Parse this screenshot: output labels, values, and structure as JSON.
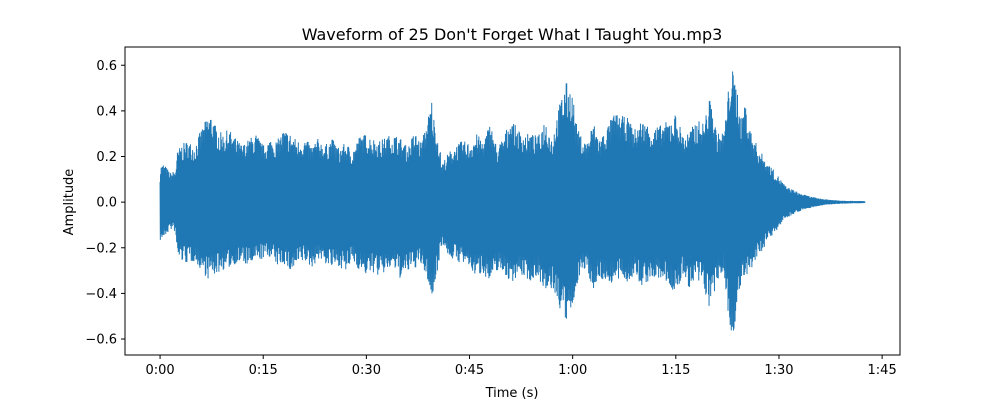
{
  "chart_data": {
    "type": "area",
    "title": "Waveform of 25 Don't Forget What I Taught You.mp3",
    "xlabel": "Time (s)",
    "ylabel": "Amplitude",
    "xlim": [
      -5.1,
      107.6
    ],
    "ylim": [
      -0.67,
      0.68
    ],
    "x_ticks": [
      {
        "value": 0,
        "label": "0:00"
      },
      {
        "value": 15,
        "label": "0:15"
      },
      {
        "value": 30,
        "label": "0:30"
      },
      {
        "value": 45,
        "label": "0:45"
      },
      {
        "value": 60,
        "label": "1:00"
      },
      {
        "value": 75,
        "label": "1:15"
      },
      {
        "value": 90,
        "label": "1:30"
      },
      {
        "value": 105,
        "label": "1:45"
      }
    ],
    "y_ticks": [
      {
        "value": 0.6,
        "label": "0.6"
      },
      {
        "value": 0.4,
        "label": "0.4"
      },
      {
        "value": 0.2,
        "label": "0.2"
      },
      {
        "value": 0.0,
        "label": "0.0"
      },
      {
        "value": -0.2,
        "label": "−0.2"
      },
      {
        "value": -0.4,
        "label": "−0.4"
      },
      {
        "value": -0.6,
        "label": "−0.6"
      }
    ],
    "grid": false,
    "series_color": "#1f77b4",
    "series": [
      {
        "envelope": {
          "time": [
            0,
            0.5,
            1.5,
            2.2,
            2.5,
            3,
            4,
            5,
            6,
            7,
            7.5,
            8,
            9,
            10,
            11,
            12,
            13,
            14,
            15,
            16,
            17,
            18,
            19,
            20,
            21,
            22,
            23,
            24,
            25,
            26,
            27,
            28,
            29,
            30,
            31,
            32,
            33,
            34,
            35,
            36,
            37,
            38,
            39,
            39.5,
            40,
            40.5,
            41,
            42,
            43,
            44,
            45,
            46,
            47,
            48,
            49,
            50,
            51,
            52,
            53,
            54,
            55,
            56,
            57,
            58,
            59,
            60,
            60.5,
            61,
            62,
            63,
            64,
            65,
            66,
            67,
            68,
            69,
            70,
            71,
            72,
            73,
            74,
            75,
            76,
            77,
            78,
            79,
            80,
            81,
            82,
            82.5,
            83,
            84,
            84.5,
            85,
            86,
            87,
            88,
            89,
            90,
            91,
            92,
            93,
            94,
            95,
            96,
            97,
            98,
            99,
            100,
            101,
            102,
            102.5
          ],
          "max": [
            0.16,
            0.17,
            0.13,
            0.14,
            0.22,
            0.25,
            0.27,
            0.25,
            0.32,
            0.38,
            0.39,
            0.34,
            0.3,
            0.32,
            0.28,
            0.25,
            0.28,
            0.3,
            0.25,
            0.28,
            0.27,
            0.32,
            0.3,
            0.27,
            0.28,
            0.25,
            0.28,
            0.25,
            0.28,
            0.24,
            0.26,
            0.23,
            0.29,
            0.3,
            0.28,
            0.27,
            0.29,
            0.3,
            0.28,
            0.24,
            0.31,
            0.26,
            0.38,
            0.45,
            0.33,
            0.28,
            0.17,
            0.22,
            0.25,
            0.27,
            0.26,
            0.3,
            0.27,
            0.35,
            0.24,
            0.29,
            0.37,
            0.32,
            0.3,
            0.3,
            0.29,
            0.37,
            0.28,
            0.42,
            0.53,
            0.48,
            0.35,
            0.3,
            0.26,
            0.35,
            0.28,
            0.33,
            0.39,
            0.38,
            0.37,
            0.32,
            0.36,
            0.34,
            0.33,
            0.34,
            0.36,
            0.39,
            0.3,
            0.31,
            0.36,
            0.35,
            0.46,
            0.3,
            0.31,
            0.45,
            0.61,
            0.49,
            0.35,
            0.45,
            0.3,
            0.24,
            0.19,
            0.15,
            0.11,
            0.07,
            0.055,
            0.04,
            0.03,
            0.022,
            0.016,
            0.012,
            0.009,
            0.007,
            0.006,
            0.005,
            0.005,
            0.004
          ],
          "min": [
            -0.17,
            -0.16,
            -0.12,
            -0.13,
            -0.24,
            -0.26,
            -0.27,
            -0.26,
            -0.3,
            -0.34,
            -0.32,
            -0.32,
            -0.3,
            -0.29,
            -0.27,
            -0.27,
            -0.28,
            -0.26,
            -0.25,
            -0.24,
            -0.28,
            -0.27,
            -0.31,
            -0.28,
            -0.26,
            -0.29,
            -0.25,
            -0.27,
            -0.29,
            -0.28,
            -0.31,
            -0.26,
            -0.3,
            -0.32,
            -0.31,
            -0.33,
            -0.3,
            -0.29,
            -0.34,
            -0.31,
            -0.29,
            -0.28,
            -0.35,
            -0.44,
            -0.36,
            -0.27,
            -0.18,
            -0.24,
            -0.26,
            -0.27,
            -0.29,
            -0.33,
            -0.31,
            -0.36,
            -0.3,
            -0.31,
            -0.36,
            -0.32,
            -0.33,
            -0.35,
            -0.32,
            -0.42,
            -0.38,
            -0.46,
            -0.53,
            -0.48,
            -0.38,
            -0.32,
            -0.3,
            -0.38,
            -0.34,
            -0.35,
            -0.36,
            -0.34,
            -0.35,
            -0.33,
            -0.37,
            -0.35,
            -0.34,
            -0.34,
            -0.36,
            -0.42,
            -0.32,
            -0.38,
            -0.36,
            -0.37,
            -0.48,
            -0.36,
            -0.3,
            -0.46,
            -0.62,
            -0.48,
            -0.35,
            -0.36,
            -0.3,
            -0.24,
            -0.19,
            -0.15,
            -0.11,
            -0.07,
            -0.055,
            -0.04,
            -0.03,
            -0.022,
            -0.016,
            -0.012,
            -0.009,
            -0.007,
            -0.006,
            -0.005,
            -0.005,
            -0.004
          ]
        }
      }
    ]
  }
}
